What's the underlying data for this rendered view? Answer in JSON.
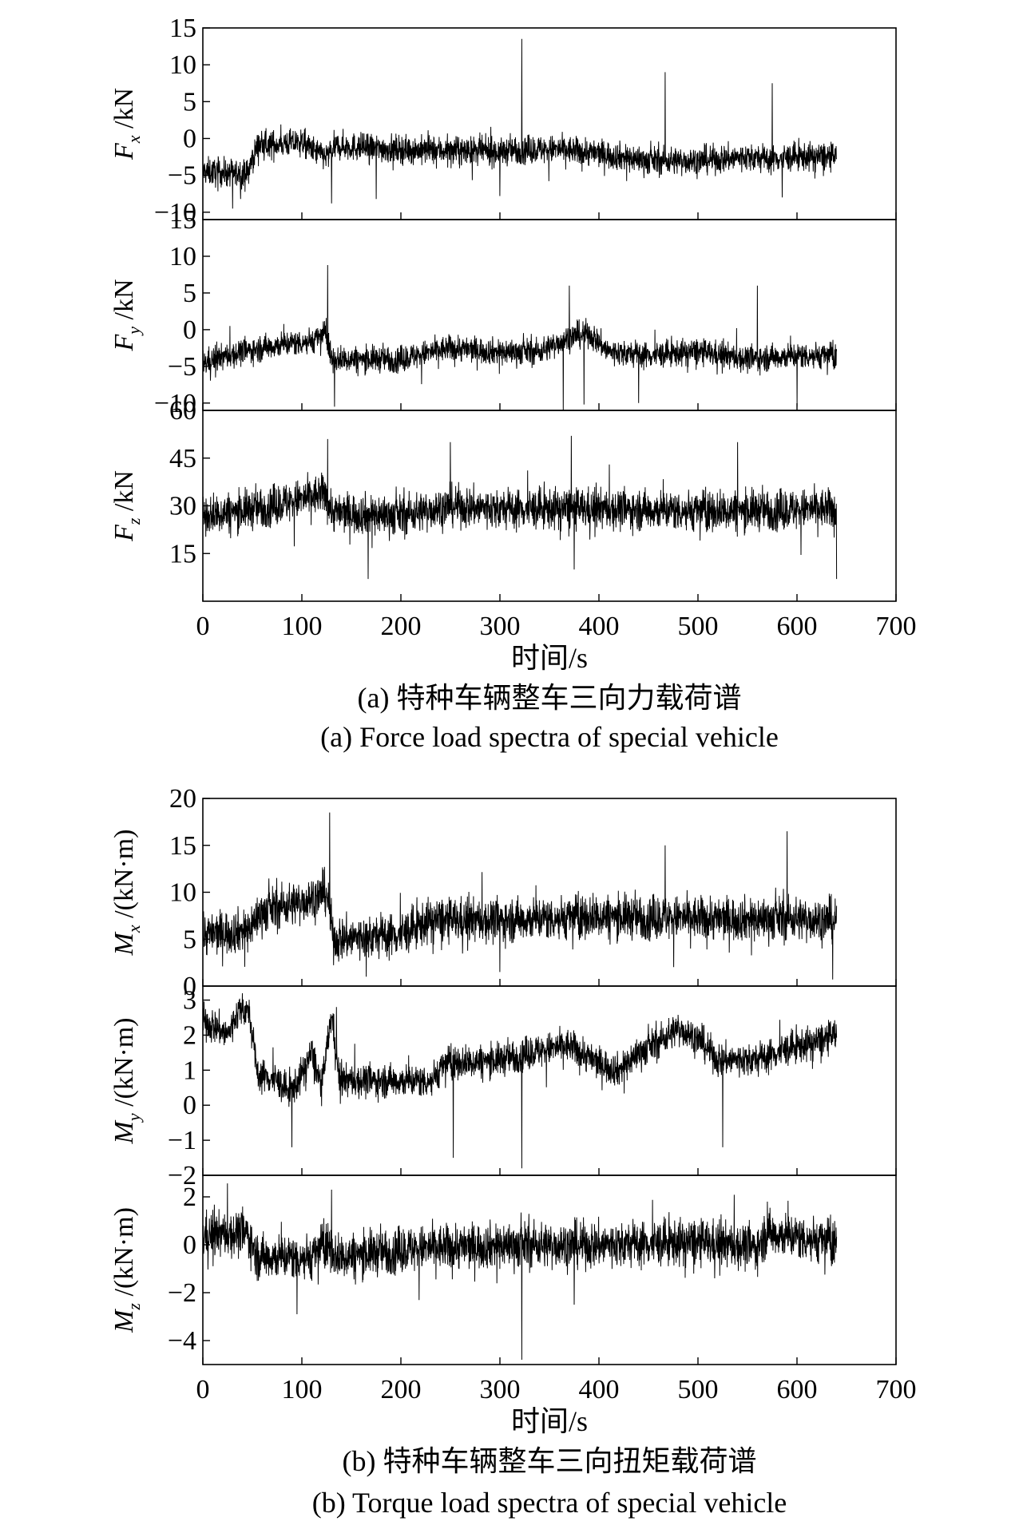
{
  "figure_a": {
    "caption_cn": "(a) 特种车辆整车三向力载荷谱",
    "caption_en": "(a) Force load spectra of special vehicle",
    "xlabel": "时间/s"
  },
  "figure_b": {
    "caption_cn": "(b) 特种车辆整车三向扭矩载荷谱",
    "caption_en": "(b) Torque load spectra of special vehicle",
    "xlabel": "时间/s"
  },
  "chart_data": [
    {
      "type": "line",
      "group": "a",
      "id": "Fx",
      "ylabel": "F_x /kN",
      "ylabel_main": "F",
      "ylabel_sub": "x",
      "ylabel_unit": " /kN",
      "xlim": [
        0,
        700
      ],
      "ylim": [
        -11,
        15
      ],
      "yticks": [
        -10,
        -5,
        0,
        5,
        10,
        15
      ],
      "xticks": [
        0,
        100,
        200,
        300,
        400,
        500,
        600,
        700
      ],
      "show_xtick_labels": false,
      "time_end": 640,
      "baseline": [
        [
          0,
          -4.5
        ],
        [
          45,
          -4.8
        ],
        [
          55,
          -1
        ],
        [
          100,
          -0.5
        ],
        [
          110,
          -1.5
        ],
        [
          125,
          -2.5
        ],
        [
          135,
          -1
        ],
        [
          200,
          -1.5
        ],
        [
          300,
          -1.8
        ],
        [
          320,
          -1.5
        ],
        [
          360,
          -1.5
        ],
        [
          400,
          -2
        ],
        [
          450,
          -3
        ],
        [
          500,
          -3
        ],
        [
          550,
          -2.5
        ],
        [
          570,
          -2.8
        ],
        [
          600,
          -2.5
        ],
        [
          640,
          -2.5
        ]
      ],
      "noise_amp": 1.8,
      "spikes": [
        [
          322,
          13.5
        ],
        [
          467,
          9
        ],
        [
          575,
          7.5
        ],
        [
          30,
          -9.5
        ],
        [
          175,
          -8.2
        ],
        [
          585,
          -8
        ],
        [
          300,
          -7.8
        ],
        [
          130,
          -8.8
        ]
      ]
    },
    {
      "type": "line",
      "group": "a",
      "id": "Fy",
      "ylabel": "F_y /kN",
      "ylabel_main": "F",
      "ylabel_sub": "y",
      "ylabel_unit": " /kN",
      "xlim": [
        0,
        700
      ],
      "ylim": [
        -11,
        15
      ],
      "yticks": [
        -10,
        -5,
        0,
        5,
        10,
        15
      ],
      "xticks": [
        0,
        100,
        200,
        300,
        400,
        500,
        600,
        700
      ],
      "show_xtick_labels": false,
      "time_end": 640,
      "baseline": [
        [
          0,
          -4.5
        ],
        [
          40,
          -3
        ],
        [
          80,
          -2
        ],
        [
          110,
          -1.5
        ],
        [
          125,
          -0.5
        ],
        [
          130,
          -4
        ],
        [
          200,
          -4
        ],
        [
          250,
          -2.5
        ],
        [
          300,
          -3
        ],
        [
          340,
          -3
        ],
        [
          370,
          -1
        ],
        [
          390,
          -0.5
        ],
        [
          410,
          -3
        ],
        [
          450,
          -3.5
        ],
        [
          500,
          -3
        ],
        [
          550,
          -4
        ],
        [
          600,
          -3.5
        ],
        [
          640,
          -3.5
        ]
      ],
      "noise_amp": 1.7,
      "spikes": [
        [
          126,
          8.8
        ],
        [
          370,
          6
        ],
        [
          560,
          6
        ],
        [
          364,
          -11.5
        ],
        [
          133,
          -10.5
        ],
        [
          440,
          -10
        ],
        [
          600,
          -10.5
        ],
        [
          385,
          -10.2
        ]
      ]
    },
    {
      "type": "line",
      "group": "a",
      "id": "Fz",
      "ylabel": "F_z /kN",
      "ylabel_main": "F",
      "ylabel_sub": "z",
      "ylabel_unit": " /kN",
      "xlim": [
        0,
        700
      ],
      "ylim": [
        0,
        60
      ],
      "yticks": [
        15,
        30,
        45,
        60
      ],
      "xticks": [
        0,
        100,
        200,
        300,
        400,
        500,
        600,
        700
      ],
      "show_xtick_labels": true,
      "time_end": 640,
      "baseline": [
        [
          0,
          27
        ],
        [
          50,
          29
        ],
        [
          100,
          32
        ],
        [
          125,
          34
        ],
        [
          130,
          28
        ],
        [
          200,
          27
        ],
        [
          250,
          30
        ],
        [
          300,
          29
        ],
        [
          400,
          29
        ],
        [
          500,
          28.5
        ],
        [
          640,
          29
        ]
      ],
      "noise_amp": 6,
      "spikes": [
        [
          372,
          52
        ],
        [
          126,
          51
        ],
        [
          250,
          50
        ],
        [
          540,
          50
        ],
        [
          167,
          7
        ],
        [
          640,
          7
        ],
        [
          375,
          10
        ]
      ]
    },
    {
      "type": "line",
      "group": "b",
      "id": "Mx",
      "ylabel": "M_x /(kN·m)",
      "ylabel_main": "M",
      "ylabel_sub": "x",
      "ylabel_unit": " /(kN·m)",
      "xlim": [
        0,
        700
      ],
      "ylim": [
        0,
        20
      ],
      "yticks": [
        0,
        5,
        10,
        15,
        20
      ],
      "xticks": [
        0,
        100,
        200,
        300,
        400,
        500,
        600,
        700
      ],
      "show_xtick_labels": false,
      "time_end": 640,
      "baseline": [
        [
          0,
          5.5
        ],
        [
          45,
          6
        ],
        [
          60,
          8
        ],
        [
          100,
          9
        ],
        [
          125,
          10
        ],
        [
          132,
          5
        ],
        [
          200,
          5.5
        ],
        [
          230,
          7
        ],
        [
          300,
          7
        ],
        [
          400,
          7.5
        ],
        [
          500,
          7.2
        ],
        [
          600,
          7.2
        ],
        [
          640,
          7
        ]
      ],
      "noise_amp": 2.2,
      "spikes": [
        [
          128,
          18.5
        ],
        [
          590,
          16.5
        ],
        [
          467,
          15
        ],
        [
          165,
          1
        ],
        [
          636,
          0.7
        ],
        [
          300,
          1.5
        ]
      ]
    },
    {
      "type": "line",
      "group": "b",
      "id": "My",
      "ylabel": "M_y /(kN·m)",
      "ylabel_main": "M",
      "ylabel_sub": "y",
      "ylabel_unit": " /(kN·m)",
      "xlim": [
        0,
        700
      ],
      "ylim": [
        -2,
        3.4
      ],
      "yticks": [
        -2,
        -1,
        0,
        1,
        2,
        3
      ],
      "xticks": [
        0,
        100,
        200,
        300,
        400,
        500,
        600,
        700
      ],
      "show_xtick_labels": false,
      "time_end": 640,
      "baseline": [
        [
          0,
          2.4
        ],
        [
          15,
          2.2
        ],
        [
          25,
          2.0
        ],
        [
          38,
          2.8
        ],
        [
          47,
          2.6
        ],
        [
          55,
          0.9
        ],
        [
          75,
          0.7
        ],
        [
          85,
          0.4
        ],
        [
          95,
          0.6
        ],
        [
          110,
          1.5
        ],
        [
          120,
          0.5
        ],
        [
          130,
          2.6
        ],
        [
          138,
          0.7
        ],
        [
          200,
          0.7
        ],
        [
          230,
          0.7
        ],
        [
          245,
          1.2
        ],
        [
          300,
          1.3
        ],
        [
          330,
          1.5
        ],
        [
          370,
          1.7
        ],
        [
          400,
          1.2
        ],
        [
          420,
          1.0
        ],
        [
          440,
          1.5
        ],
        [
          460,
          1.8
        ],
        [
          480,
          2.2
        ],
        [
          500,
          1.9
        ],
        [
          520,
          1.3
        ],
        [
          560,
          1.3
        ],
        [
          590,
          1.6
        ],
        [
          620,
          1.8
        ],
        [
          640,
          2.0
        ]
      ],
      "noise_amp": 0.45,
      "spikes": [
        [
          322,
          -1.8
        ],
        [
          253,
          -1.5
        ],
        [
          525,
          -1.2
        ],
        [
          90,
          -1.2
        ],
        [
          135,
          2.8
        ]
      ]
    },
    {
      "type": "line",
      "group": "b",
      "id": "Mz",
      "ylabel": "M_z /(kN·m)",
      "ylabel_main": "M",
      "ylabel_sub": "z",
      "ylabel_unit": " /(kN·m)",
      "xlim": [
        0,
        700
      ],
      "ylim": [
        -5,
        2.9
      ],
      "yticks": [
        -4,
        -2,
        0,
        2
      ],
      "xticks": [
        0,
        100,
        200,
        300,
        400,
        500,
        600,
        700
      ],
      "show_xtick_labels": true,
      "time_end": 640,
      "baseline": [
        [
          0,
          0.4
        ],
        [
          45,
          0.5
        ],
        [
          55,
          -0.5
        ],
        [
          110,
          -0.5
        ],
        [
          125,
          0.1
        ],
        [
          135,
          -0.5
        ],
        [
          200,
          -0.2
        ],
        [
          300,
          0
        ],
        [
          400,
          0
        ],
        [
          500,
          0.1
        ],
        [
          560,
          -0.1
        ],
        [
          570,
          0.5
        ],
        [
          640,
          0.1
        ]
      ],
      "noise_amp": 0.9,
      "spikes": [
        [
          322,
          -4.8
        ],
        [
          130,
          2.3
        ],
        [
          570,
          1.8
        ],
        [
          95,
          -2.9
        ],
        [
          375,
          -2.5
        ]
      ]
    }
  ]
}
